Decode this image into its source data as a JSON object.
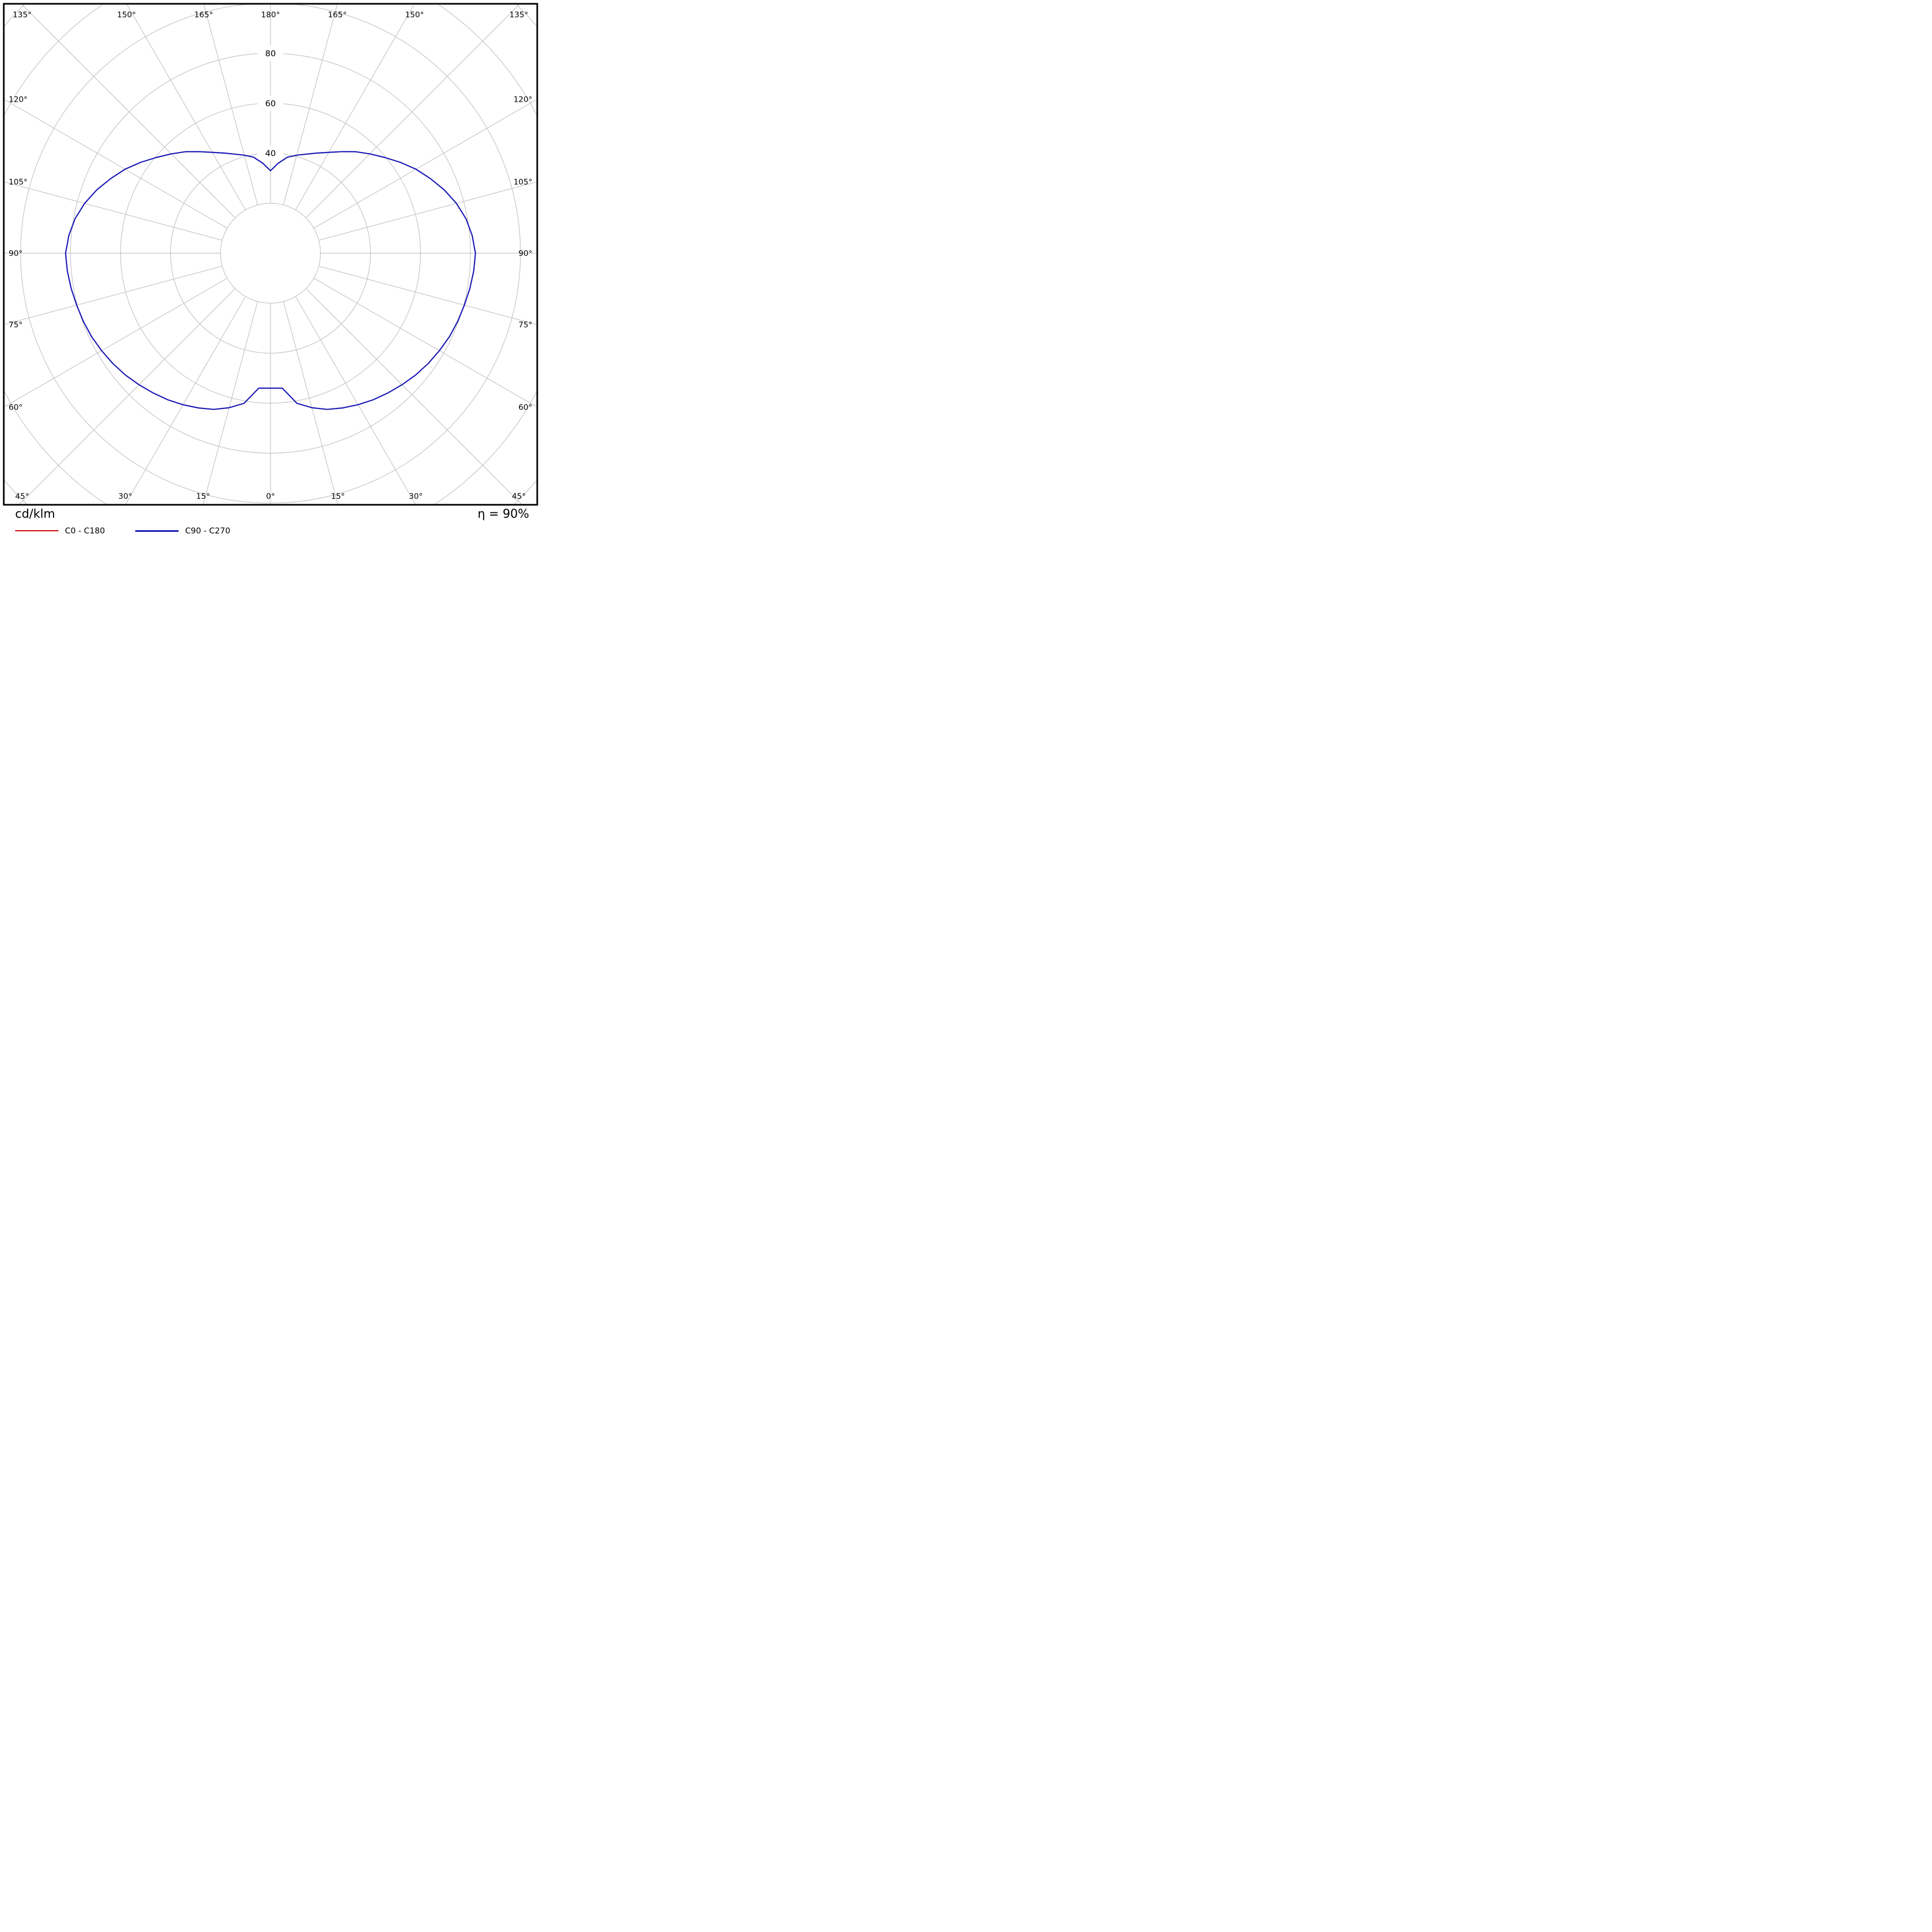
{
  "chart_data": {
    "type": "polar",
    "description": "Luminous intensity distribution (photometric polar curve)",
    "unit_label": "cd/klm",
    "efficiency_label": "η = 90%",
    "legend": [
      {
        "label": "C0 - C180",
        "color": "#cc0000"
      },
      {
        "label": "C90 - C270",
        "color": "#1717b5"
      }
    ],
    "grid": {
      "ring_step": 20,
      "rings": [
        20,
        40,
        60,
        80,
        100,
        120,
        140
      ],
      "ring_labels": [
        40,
        60,
        80
      ],
      "angle_step_deg": 15,
      "angle_labels": [
        "0°",
        "15°",
        "30°",
        "45°",
        "60°",
        "75°",
        "90°",
        "105°",
        "120°",
        "135°",
        "150°",
        "165°",
        "180°"
      ],
      "grid_color": "#c4c4c4"
    },
    "scale": {
      "units_per_ring": 20,
      "max_radius_units": 150
    },
    "series": [
      {
        "name": "C0 - C180",
        "color": "#cc0000",
        "width": 1.6,
        "gamma_deg": [
          0,
          5,
          10,
          15,
          20,
          25,
          30,
          35,
          40,
          45,
          50,
          55,
          60,
          65,
          70,
          75,
          80,
          85,
          90,
          95,
          100,
          105,
          110,
          115,
          120,
          125,
          130,
          135,
          140,
          145,
          150,
          155,
          160,
          165,
          170,
          175,
          180
        ],
        "values": [
          54,
          54.2,
          61,
          64,
          66.5,
          68.3,
          70,
          71.6,
          73,
          74.4,
          75.8,
          77,
          78,
          79,
          79.7,
          80.3,
          81,
          81.6,
          82,
          81,
          79.4,
          77,
          74,
          70.6,
          67.2,
          63.4,
          59.6,
          56.2,
          53,
          49.6,
          46.6,
          44.2,
          42.2,
          40.6,
          39,
          36.2,
          33
        ]
      },
      {
        "name": "C90 - C270",
        "color": "#1717b5",
        "width": 2.2,
        "gamma_deg": [
          0,
          5,
          10,
          15,
          20,
          25,
          30,
          35,
          40,
          45,
          50,
          55,
          60,
          65,
          70,
          75,
          80,
          85,
          90,
          95,
          100,
          105,
          110,
          115,
          120,
          125,
          130,
          135,
          140,
          145,
          150,
          155,
          160,
          165,
          170,
          175,
          180
        ],
        "values": [
          54,
          54.2,
          61,
          64,
          66.5,
          68.3,
          70,
          71.6,
          73,
          74.4,
          75.8,
          77,
          78,
          79,
          79.7,
          80.3,
          81,
          81.6,
          82,
          81,
          79.4,
          77,
          74,
          70.6,
          67.2,
          63.4,
          59.6,
          56.2,
          53,
          49.6,
          46.6,
          44.2,
          42.2,
          40.6,
          39,
          36.2,
          33
        ]
      }
    ]
  }
}
